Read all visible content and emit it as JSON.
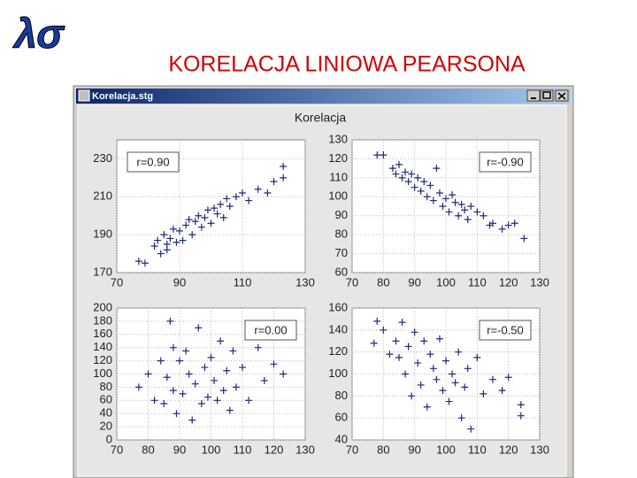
{
  "logo": "λσ",
  "slide_title": "KORELACJA LINIOWA PEARSONA",
  "window_title": "Korelacja.stg",
  "group_title": "Korelacja",
  "chart_data": [
    {
      "type": "scatter",
      "annotation": "r=0.90",
      "annotation_corner": "top-left",
      "color": "#1f2a7a",
      "grid": true,
      "xlim": [
        70,
        130
      ],
      "xticks": [
        70,
        90,
        110,
        130
      ],
      "ylim": [
        170,
        240
      ],
      "yticks": [
        170,
        190,
        210,
        230
      ],
      "x": [
        77,
        79,
        82,
        83,
        84,
        85,
        86,
        86,
        87,
        88,
        89,
        90,
        91,
        92,
        93,
        94,
        95,
        96,
        97,
        98,
        99,
        100,
        101,
        102,
        103,
        104,
        105,
        106,
        108,
        110,
        112,
        115,
        118,
        120,
        123,
        123
      ],
      "y": [
        176,
        175,
        184,
        187,
        180,
        190,
        185,
        182,
        188,
        193,
        186,
        192,
        187,
        195,
        198,
        190,
        197,
        200,
        194,
        199,
        203,
        196,
        204,
        201,
        206,
        199,
        209,
        205,
        210,
        212,
        208,
        214,
        212,
        218,
        226,
        220
      ]
    },
    {
      "type": "scatter",
      "annotation": "r=-0.90",
      "annotation_corner": "top-right",
      "color": "#1f2a7a",
      "grid": true,
      "xlim": [
        70,
        130
      ],
      "xticks": [
        70,
        80,
        90,
        100,
        110,
        120,
        130
      ],
      "ylim": [
        60,
        130
      ],
      "yticks": [
        60,
        70,
        80,
        90,
        100,
        110,
        120,
        130
      ],
      "x": [
        78,
        80,
        83,
        84,
        85,
        86,
        87,
        88,
        89,
        90,
        91,
        92,
        93,
        94,
        95,
        96,
        97,
        98,
        99,
        100,
        101,
        102,
        103,
        104,
        105,
        106,
        107,
        108,
        110,
        112,
        114,
        115,
        118,
        120,
        122,
        125
      ],
      "y": [
        122,
        122,
        115,
        112,
        117,
        110,
        113,
        108,
        112,
        105,
        110,
        103,
        108,
        100,
        106,
        98,
        115,
        102,
        95,
        99,
        92,
        101,
        97,
        90,
        96,
        93,
        88,
        95,
        92,
        90,
        85,
        86,
        83,
        85,
        86,
        78
      ]
    },
    {
      "type": "scatter",
      "annotation": "r=0.00",
      "annotation_corner": "top-right",
      "color": "#1f2a7a",
      "grid": true,
      "xlim": [
        70,
        130
      ],
      "xticks": [
        70,
        80,
        90,
        100,
        110,
        120,
        130
      ],
      "ylim": [
        0,
        200
      ],
      "yticks": [
        0,
        20,
        40,
        60,
        80,
        100,
        120,
        140,
        160,
        180,
        200
      ],
      "x": [
        77,
        80,
        82,
        84,
        85,
        86,
        87,
        88,
        88,
        89,
        90,
        91,
        92,
        93,
        94,
        95,
        96,
        97,
        98,
        99,
        100,
        101,
        102,
        103,
        104,
        105,
        106,
        107,
        108,
        110,
        112,
        115,
        117,
        120,
        123
      ],
      "y": [
        80,
        100,
        60,
        120,
        55,
        95,
        180,
        75,
        140,
        40,
        120,
        70,
        135,
        100,
        30,
        85,
        170,
        55,
        110,
        65,
        125,
        90,
        60,
        150,
        75,
        105,
        45,
        135,
        80,
        110,
        60,
        140,
        90,
        115,
        100
      ]
    },
    {
      "type": "scatter",
      "annotation": "r=-0.50",
      "annotation_corner": "top-right",
      "color": "#1f2a7a",
      "grid": true,
      "xlim": [
        70,
        130
      ],
      "xticks": [
        70,
        80,
        90,
        100,
        110,
        120,
        130
      ],
      "ylim": [
        40,
        160
      ],
      "yticks": [
        40,
        60,
        80,
        100,
        120,
        140,
        160
      ],
      "x": [
        77,
        78,
        80,
        82,
        84,
        85,
        86,
        87,
        88,
        89,
        90,
        91,
        92,
        93,
        94,
        95,
        96,
        97,
        98,
        99,
        100,
        101,
        102,
        103,
        104,
        105,
        106,
        107,
        108,
        110,
        112,
        115,
        118,
        120,
        124,
        124
      ],
      "y": [
        128,
        148,
        140,
        118,
        130,
        115,
        147,
        100,
        125,
        80,
        138,
        110,
        90,
        130,
        70,
        118,
        105,
        95,
        132,
        85,
        112,
        75,
        100,
        92,
        120,
        60,
        88,
        105,
        50,
        115,
        82,
        95,
        85,
        97,
        72,
        62
      ]
    }
  ]
}
